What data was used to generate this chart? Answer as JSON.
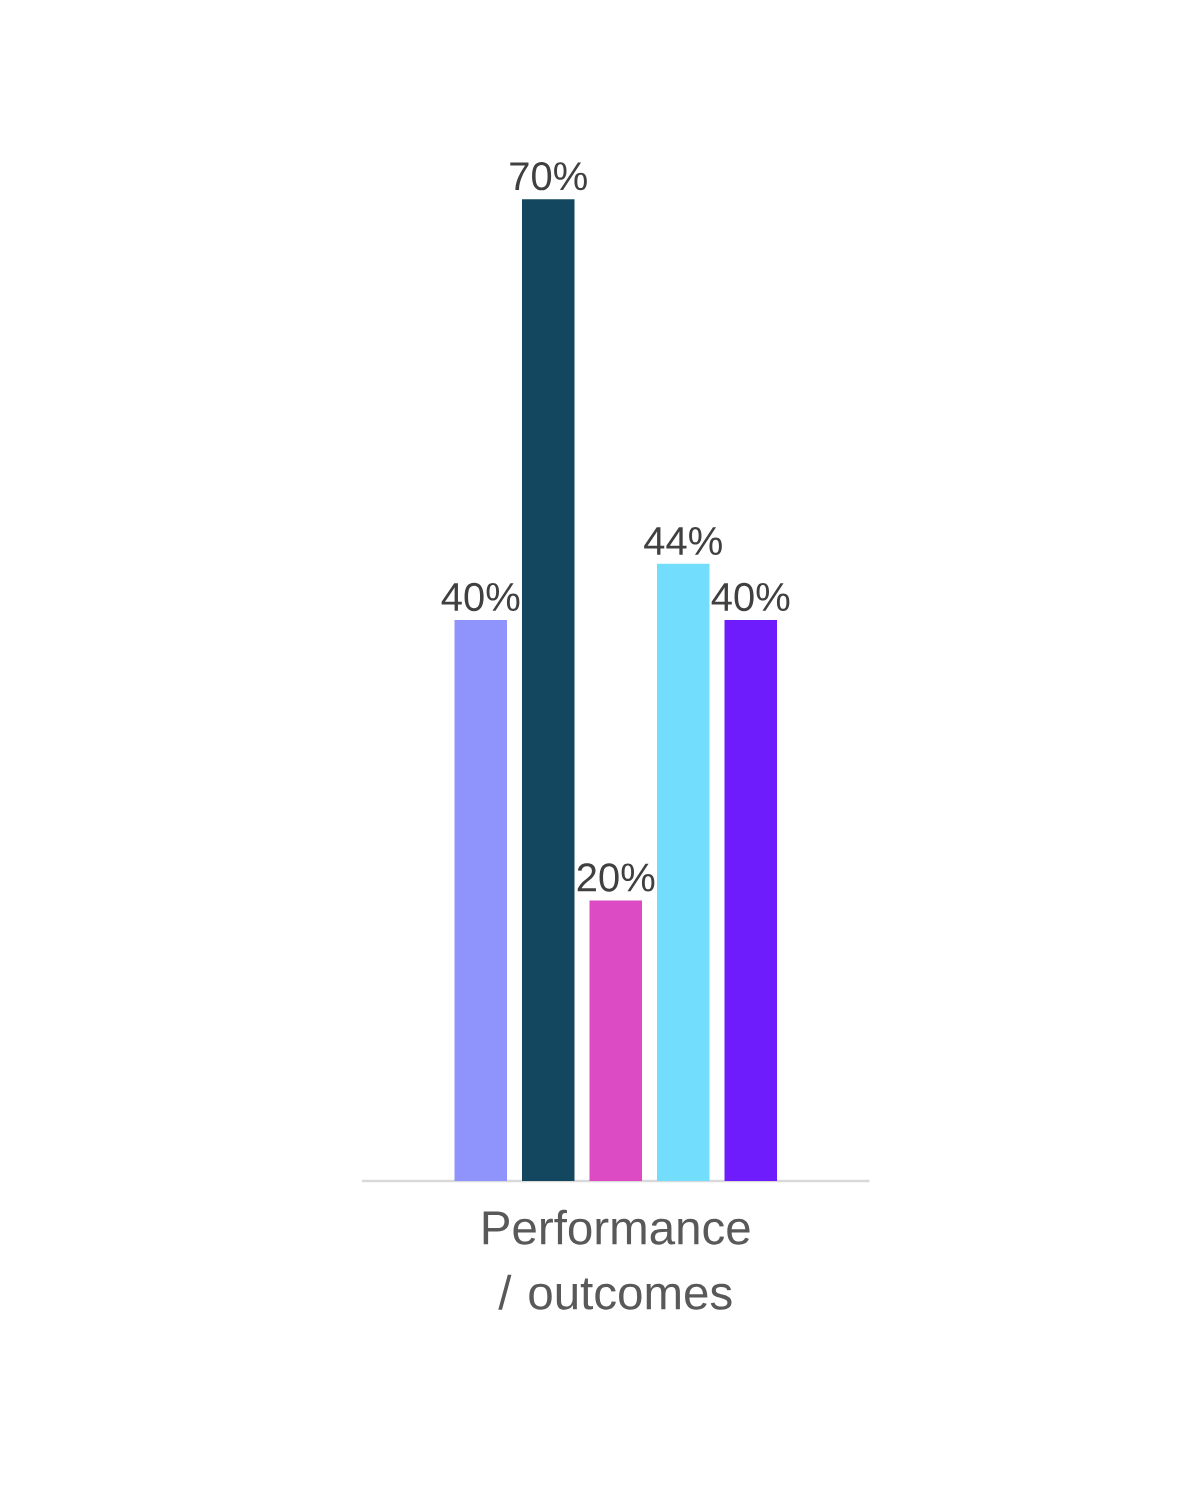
{
  "chart_data": {
    "type": "bar",
    "categories": [
      "Performance / outcomes"
    ],
    "series": [
      {
        "color": "#8f94fd",
        "values": [
          40
        ],
        "value_labels": [
          "40%"
        ]
      },
      {
        "color": "#12475f",
        "values": [
          70
        ],
        "value_labels": [
          "70%"
        ]
      },
      {
        "color": "#dc4ac4",
        "values": [
          20
        ],
        "value_labels": [
          "20%"
        ]
      },
      {
        "color": "#73ddfd",
        "values": [
          44
        ],
        "value_labels": [
          "44%"
        ]
      },
      {
        "color": "#6f1cfd",
        "values": [
          40
        ],
        "value_labels": [
          "40%"
        ]
      }
    ]
  }
}
